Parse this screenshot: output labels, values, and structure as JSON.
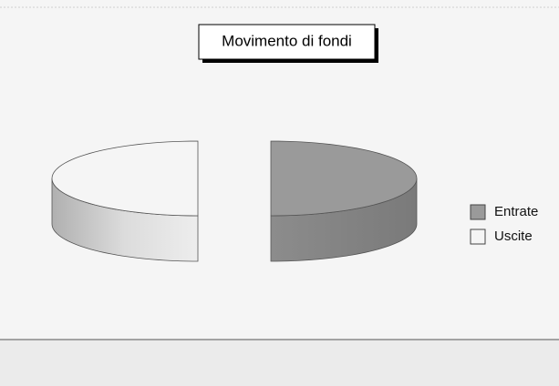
{
  "chart_data": {
    "type": "pie",
    "title": "Movimento di fondi",
    "categories": [
      "Entrate",
      "Uscite"
    ],
    "values": [
      50,
      50
    ],
    "colors": [
      "#9a9a9a",
      "#f5f5f5"
    ],
    "legend": "right",
    "three_d": true,
    "exploded": true
  }
}
